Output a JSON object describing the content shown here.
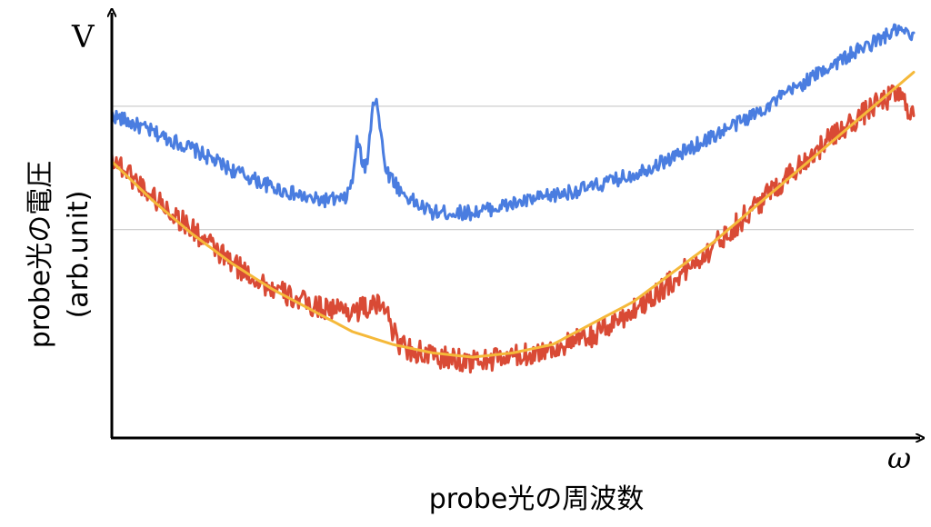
{
  "chart_data": {
    "type": "line",
    "yaxis_label": "V",
    "xaxis_label": "ω",
    "xlabel": "probe光の周波数",
    "ylabel_line1": "probe光の電圧",
    "ylabel_line2": "(arb.unit)",
    "xlim": [
      0,
      1
    ],
    "ylim": [
      0,
      1
    ],
    "ticks": "none",
    "grid": "two horizontal reference lines",
    "gridlines_y": [
      0.49,
      0.78
    ],
    "legend": "none",
    "series": [
      {
        "color": "#4a7de0",
        "style": "noisy line",
        "x": [
          0,
          0.05,
          0.1,
          0.15,
          0.2,
          0.25,
          0.29,
          0.3,
          0.305,
          0.31,
          0.315,
          0.32,
          0.325,
          0.33,
          0.335,
          0.34,
          0.345,
          0.35,
          0.36,
          0.38,
          0.4,
          0.45,
          0.5,
          0.55,
          0.6,
          0.65,
          0.7,
          0.75,
          0.8,
          0.85,
          0.9,
          0.95,
          0.98,
          1.0
        ],
        "values": [
          0.76,
          0.72,
          0.68,
          0.63,
          0.59,
          0.56,
          0.56,
          0.6,
          0.7,
          0.67,
          0.63,
          0.67,
          0.79,
          0.8,
          0.72,
          0.65,
          0.62,
          0.61,
          0.58,
          0.55,
          0.53,
          0.53,
          0.55,
          0.57,
          0.59,
          0.62,
          0.66,
          0.71,
          0.76,
          0.82,
          0.88,
          0.93,
          0.96,
          0.94
        ]
      },
      {
        "color": "#d94a35",
        "style": "noisy line",
        "x": [
          0,
          0.05,
          0.1,
          0.15,
          0.2,
          0.25,
          0.3,
          0.33,
          0.345,
          0.35,
          0.36,
          0.37,
          0.4,
          0.45,
          0.5,
          0.55,
          0.6,
          0.65,
          0.7,
          0.75,
          0.8,
          0.85,
          0.9,
          0.95,
          0.98,
          1.0
        ],
        "values": [
          0.66,
          0.57,
          0.49,
          0.41,
          0.35,
          0.31,
          0.3,
          0.31,
          0.31,
          0.25,
          0.22,
          0.21,
          0.19,
          0.18,
          0.19,
          0.21,
          0.24,
          0.3,
          0.37,
          0.45,
          0.54,
          0.63,
          0.71,
          0.78,
          0.81,
          0.76
        ]
      },
      {
        "color": "#f5b93a",
        "style": "smooth fit",
        "x": [
          0,
          0.05,
          0.1,
          0.15,
          0.2,
          0.25,
          0.3,
          0.35,
          0.4,
          0.45,
          0.5,
          0.55,
          0.6,
          0.65,
          0.7,
          0.75,
          0.8,
          0.85,
          0.9,
          0.95,
          1.0
        ],
        "values": [
          0.65,
          0.56,
          0.48,
          0.41,
          0.35,
          0.3,
          0.25,
          0.22,
          0.2,
          0.19,
          0.2,
          0.22,
          0.27,
          0.32,
          0.39,
          0.46,
          0.54,
          0.62,
          0.7,
          0.78,
          0.86
        ]
      }
    ]
  }
}
